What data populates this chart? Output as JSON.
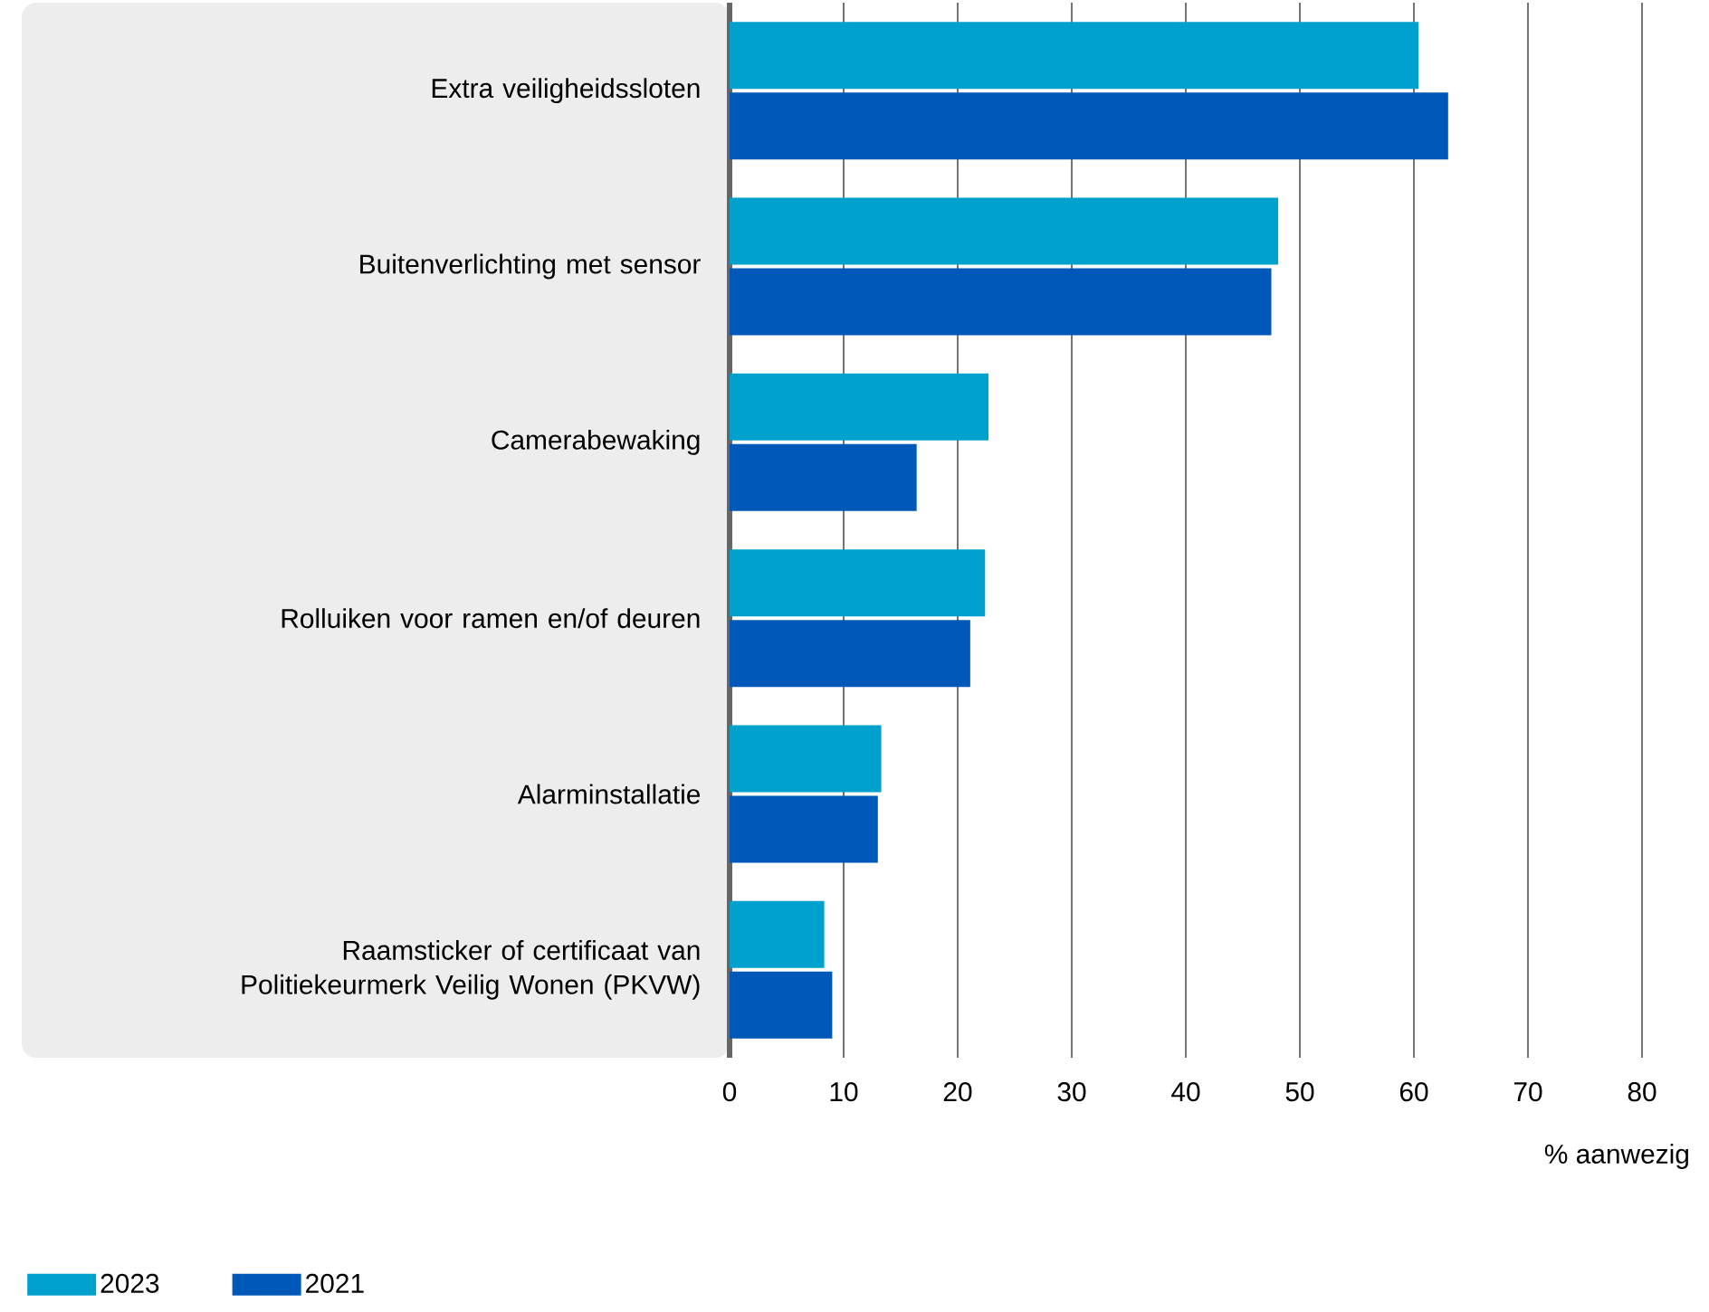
{
  "chart_data": {
    "type": "bar",
    "orientation": "horizontal",
    "xlabel": "% aanwezig",
    "categories": [
      "Extra veiligheidssloten",
      "Buitenverlichting met sensor",
      "Camerabewaking",
      "Rolluiken voor ramen en/of deuren",
      "Alarminstallatie",
      "Raamsticker of certificaat van Politiekeurmerk Veilig Wonen (PKVW)"
    ],
    "series": [
      {
        "name": "2023",
        "color": "#00a1cd",
        "values": [
          60.4,
          48.1,
          22.7,
          22.4,
          13.3,
          8.3
        ]
      },
      {
        "name": "2021",
        "color": "#0058b8",
        "values": [
          63.0,
          47.5,
          16.4,
          21.1,
          13.0,
          9.0
        ]
      }
    ],
    "xlim": [
      0,
      80
    ],
    "xticks": [
      0,
      10,
      20,
      30,
      40,
      50,
      60,
      70,
      80
    ],
    "grid": "x",
    "legend": "bottom left"
  }
}
